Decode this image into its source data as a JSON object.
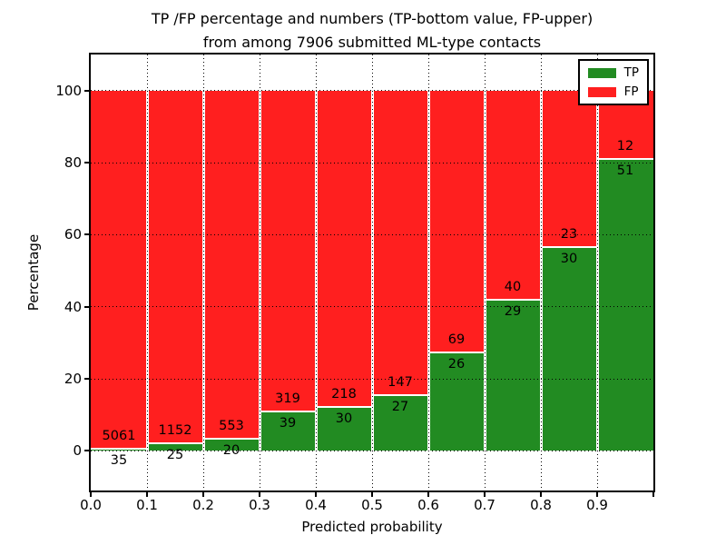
{
  "title": {
    "line1": "TP /FP percentage and numbers (TP-bottom value, FP-upper)",
    "line2": "from among 7906 submitted ML-type contacts"
  },
  "axes": {
    "xlabel": "Predicted probability",
    "ylabel": "Percentage",
    "xtick_labels": [
      "0.0",
      "0.1",
      "0.2",
      "0.3",
      "0.4",
      "0.5",
      "0.6",
      "0.7",
      "0.8",
      "0.9"
    ],
    "ytick_labels": [
      "0",
      "20",
      "40",
      "60",
      "80",
      "100"
    ]
  },
  "legend": {
    "items": [
      {
        "label": "TP",
        "color": "#228B22"
      },
      {
        "label": "FP",
        "color": "#FF1F1F"
      }
    ]
  },
  "chart_data": {
    "type": "bar",
    "stacked": true,
    "title": "TP /FP percentage and numbers (TP-bottom value, FP-upper) from among 7906 submitted ML-type contacts",
    "xlabel": "Predicted probability",
    "ylabel": "Percentage",
    "xlim": [
      0,
      1
    ],
    "ylim": [
      -11,
      110
    ],
    "xtick_values": [
      0.0,
      0.1,
      0.2,
      0.3,
      0.4,
      0.5,
      0.6,
      0.7,
      0.8,
      0.9
    ],
    "ytick_values": [
      0,
      20,
      40,
      60,
      80,
      100
    ],
    "grid": "dotted-black-over-bars",
    "legend_position": "upper right",
    "total_contacts": 7906,
    "colors": {
      "tp": "#228B22",
      "fp": "#FF1F1F",
      "bar_edge": "#FFFFFF"
    },
    "series": [
      {
        "name": "TP",
        "values": [
          35,
          25,
          20,
          39,
          30,
          27,
          26,
          29,
          30,
          51
        ]
      },
      {
        "name": "FP",
        "values": [
          5061,
          1152,
          553,
          319,
          218,
          147,
          69,
          40,
          23,
          12
        ]
      }
    ],
    "bins": [
      {
        "x0": 0.0,
        "x1": 0.1,
        "tp": 35,
        "fp": 5061,
        "tp_percent": 0.687
      },
      {
        "x0": 0.1,
        "x1": 0.2,
        "tp": 25,
        "fp": 1152,
        "tp_percent": 2.124
      },
      {
        "x0": 0.2,
        "x1": 0.3,
        "tp": 20,
        "fp": 553,
        "tp_percent": 3.49
      },
      {
        "x0": 0.3,
        "x1": 0.4,
        "tp": 39,
        "fp": 319,
        "tp_percent": 10.894
      },
      {
        "x0": 0.4,
        "x1": 0.5,
        "tp": 30,
        "fp": 218,
        "tp_percent": 12.097
      },
      {
        "x0": 0.5,
        "x1": 0.6,
        "tp": 27,
        "fp": 147,
        "tp_percent": 15.517
      },
      {
        "x0": 0.6,
        "x1": 0.7,
        "tp": 26,
        "fp": 69,
        "tp_percent": 27.368
      },
      {
        "x0": 0.7,
        "x1": 0.8,
        "tp": 29,
        "fp": 40,
        "tp_percent": 42.029
      },
      {
        "x0": 0.8,
        "x1": 0.9,
        "tp": 30,
        "fp": 23,
        "tp_percent": 56.604
      },
      {
        "x0": 0.9,
        "x1": 1.0,
        "tp": 51,
        "fp": 12,
        "tp_percent": 80.952
      }
    ]
  }
}
